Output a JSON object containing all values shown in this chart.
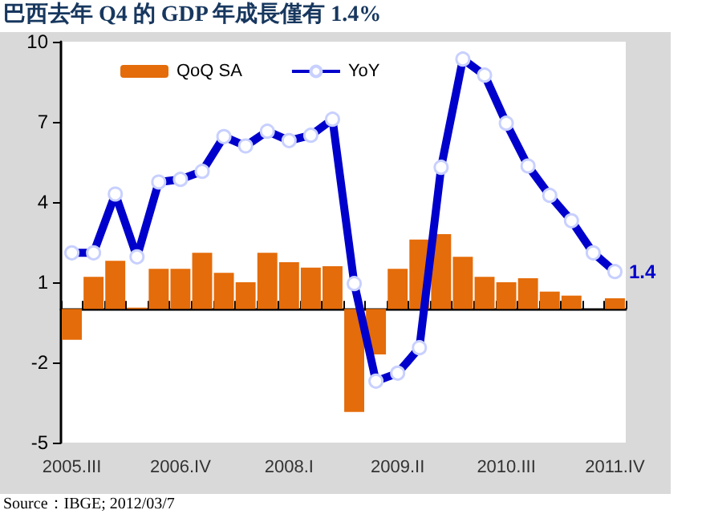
{
  "chart_data": {
    "type": "bar",
    "title": "巴西去年 Q4 的 GDP 年成長僅有 1.4%",
    "categories": [
      "2005.III",
      null,
      null,
      null,
      null,
      "2006.IV",
      null,
      null,
      null,
      null,
      "2008.I",
      null,
      null,
      null,
      null,
      "2009.II",
      null,
      null,
      null,
      null,
      "2010.III",
      null,
      null,
      null,
      null,
      "2011.IV"
    ],
    "series": [
      {
        "name": "QoQ SA",
        "color": "#e46c0a",
        "values": [
          -1.15,
          1.2,
          1.8,
          0.05,
          1.5,
          1.5,
          2.1,
          1.35,
          1.0,
          2.1,
          1.75,
          1.55,
          1.6,
          -3.85,
          -1.7,
          1.5,
          2.6,
          2.8,
          1.95,
          1.2,
          1.0,
          1.15,
          0.65,
          0.5,
          0.0,
          0.4
        ]
      },
      {
        "name": "YoY",
        "type": "line",
        "color": "#0000cc",
        "marker": "circle",
        "values": [
          2.1,
          2.1,
          4.3,
          1.95,
          4.75,
          4.85,
          5.15,
          6.45,
          6.1,
          6.65,
          6.3,
          6.5,
          7.1,
          0.95,
          -2.7,
          -2.4,
          -1.45,
          5.3,
          9.35,
          8.75,
          6.95,
          5.35,
          4.25,
          3.3,
          2.1,
          1.4
        ],
        "value_labels": [
          null,
          null,
          null,
          null,
          null,
          null,
          null,
          null,
          null,
          null,
          null,
          null,
          null,
          null,
          null,
          null,
          null,
          null,
          null,
          null,
          null,
          null,
          null,
          null,
          null,
          "1.4"
        ]
      }
    ],
    "ylim": [
      -5,
      10
    ],
    "yticks": [
      -5,
      -2,
      1,
      4,
      7,
      10
    ],
    "grid": false,
    "legend": "top",
    "annotations": [
      "Source：IBGE; 2012/03/7"
    ]
  }
}
